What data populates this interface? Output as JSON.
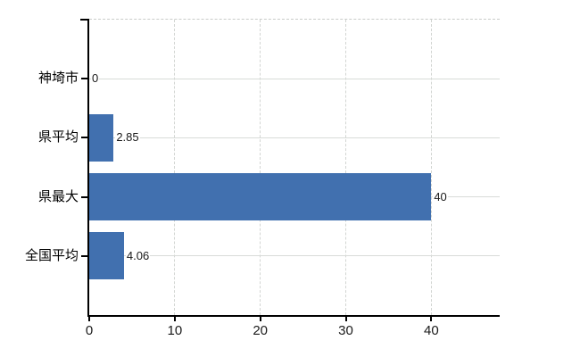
{
  "chart_data": {
    "type": "bar",
    "orientation": "horizontal",
    "title": "",
    "xlabel": "",
    "ylabel": "",
    "categories": [
      "神埼市",
      "県平均",
      "県最大",
      "全国平均"
    ],
    "values": [
      0,
      2.85,
      40,
      4.06
    ],
    "value_labels": [
      "0",
      "2.85",
      "40",
      "4.06"
    ],
    "x_tick_labels": [
      "0",
      "10",
      "20",
      "30",
      "40"
    ],
    "x_tick_values": [
      0,
      10,
      20,
      30,
      40
    ],
    "xlim": [
      0,
      48
    ],
    "grid": true,
    "legend": false,
    "colors": {
      "bar": "#4170af",
      "axis": "#000000",
      "gridline_h": "#d8dbd8",
      "gridline_v": "#d2d5d2",
      "plot_top_border": "#c9ccc9",
      "text": "#000000",
      "value_text": "#1a1a1a",
      "background": "#ffffff"
    }
  }
}
